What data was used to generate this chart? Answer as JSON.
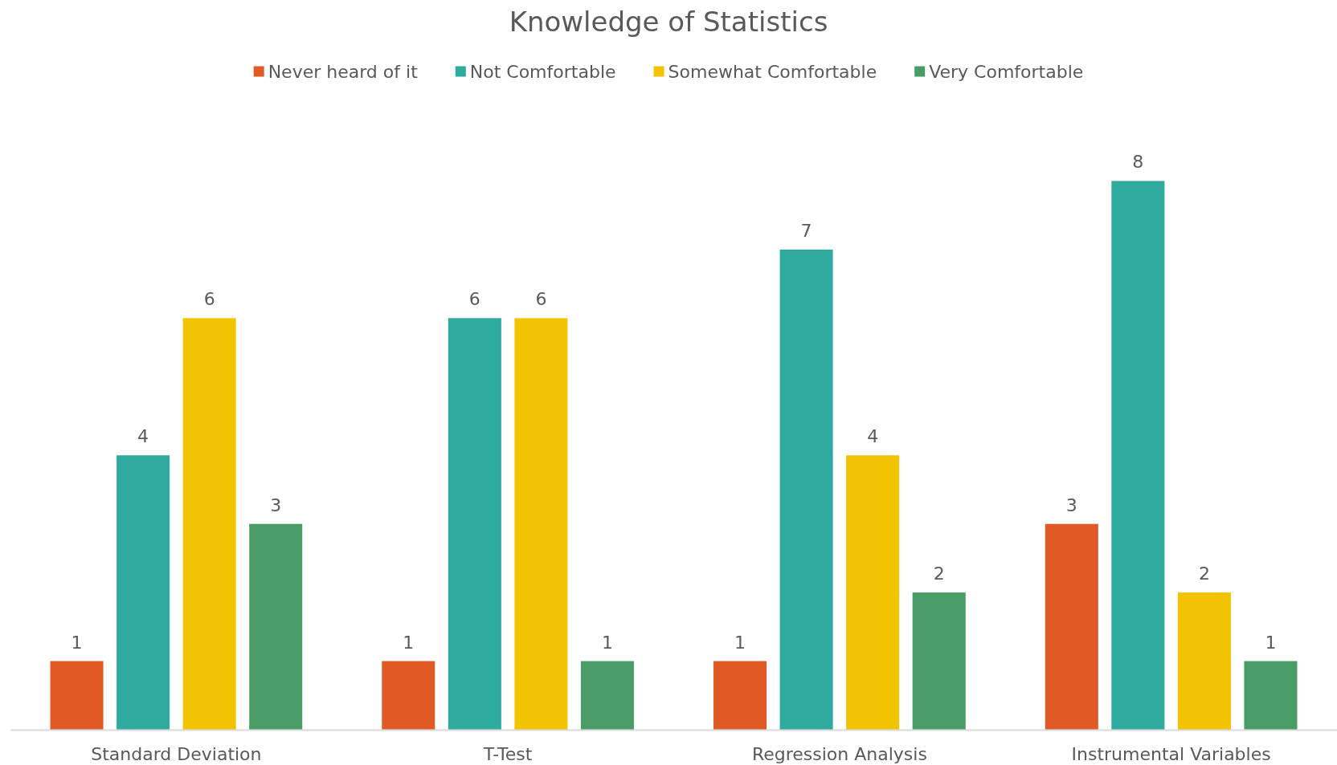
{
  "chart_data": {
    "type": "bar",
    "title": "Knowledge of Statistics",
    "categories": [
      "Standard Deviation",
      "T-Test",
      "Regression Analysis",
      "Instrumental Variables"
    ],
    "series": [
      {
        "name": "Never heard of it",
        "color": "#e05a26",
        "values": [
          1,
          1,
          1,
          3
        ]
      },
      {
        "name": "Not Comfortable",
        "color": "#2eaa9f",
        "values": [
          4,
          6,
          7,
          8
        ]
      },
      {
        "name": "Somewhat Comfortable",
        "color": "#f2c300",
        "values": [
          6,
          6,
          4,
          2
        ]
      },
      {
        "name": "Very Comfortable",
        "color": "#4a9c66",
        "values": [
          3,
          1,
          2,
          1
        ]
      }
    ],
    "data_labels": true,
    "legend": "top"
  }
}
